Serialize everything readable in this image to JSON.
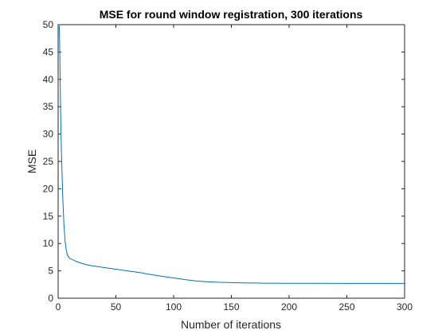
{
  "chart_data": {
    "type": "line",
    "title": "MSE for round window registration, 300 iterations",
    "xlabel": "Number of iterations",
    "ylabel": "MSE",
    "xlim": [
      0,
      300
    ],
    "ylim": [
      0,
      50
    ],
    "xticks": [
      0,
      50,
      100,
      150,
      200,
      250,
      300
    ],
    "yticks": [
      0,
      5,
      10,
      15,
      20,
      25,
      30,
      35,
      40,
      45,
      50
    ],
    "grid": false,
    "box": true,
    "line_color": "#0072BD",
    "series": [
      {
        "x": [
          1,
          1.5,
          2,
          2.5,
          3,
          4,
          5,
          6,
          7,
          8,
          9,
          10,
          12,
          15,
          20,
          25,
          30,
          40,
          50,
          60,
          70,
          80,
          90,
          100,
          110,
          120,
          130,
          140,
          150,
          160,
          170,
          180,
          200,
          220,
          250,
          280,
          300
        ],
        "y": [
          49.8,
          44,
          36,
          30,
          25.5,
          18.5,
          13.5,
          10.5,
          8.8,
          7.9,
          7.5,
          7.3,
          7.1,
          6.8,
          6.4,
          6.1,
          5.9,
          5.6,
          5.3,
          5.0,
          4.7,
          4.35,
          4.0,
          3.7,
          3.4,
          3.15,
          3.0,
          2.9,
          2.85,
          2.8,
          2.78,
          2.75,
          2.73,
          2.72,
          2.7,
          2.7,
          2.7
        ]
      }
    ]
  }
}
